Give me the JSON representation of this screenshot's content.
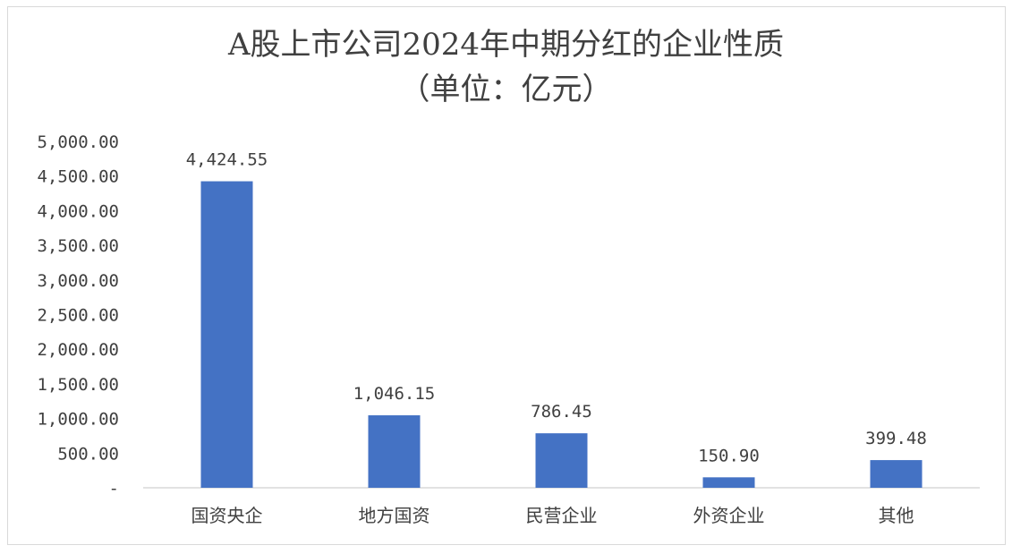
{
  "chart_data": {
    "type": "bar",
    "title": "A股上市公司2024年中期分红的企业性质",
    "subtitle": "（单位：亿元）",
    "xlabel": "",
    "ylabel": "",
    "categories": [
      "国资央企",
      "地方国资",
      "民营企业",
      "外资企业",
      "其他"
    ],
    "values": [
      4424.55,
      1046.15,
      786.45,
      150.9,
      399.48
    ],
    "value_labels": [
      "4,424.55",
      "1,046.15",
      "786.45",
      "150.90",
      "399.48"
    ],
    "ylim": [
      0,
      5000
    ],
    "y_ticks": [
      0,
      500,
      1000,
      1500,
      2000,
      2500,
      3000,
      3500,
      4000,
      4500,
      5000
    ],
    "y_tick_labels": [
      "-",
      "500.00",
      "1,000.00",
      "1,500.00",
      "2,000.00",
      "2,500.00",
      "3,000.00",
      "3,500.00",
      "4,000.00",
      "4,500.00",
      "5,000.00"
    ],
    "grid": false,
    "legend": "none",
    "bar_color": "#4472c4",
    "axis_color": "#d9d9d9",
    "text_color": "#404040"
  }
}
